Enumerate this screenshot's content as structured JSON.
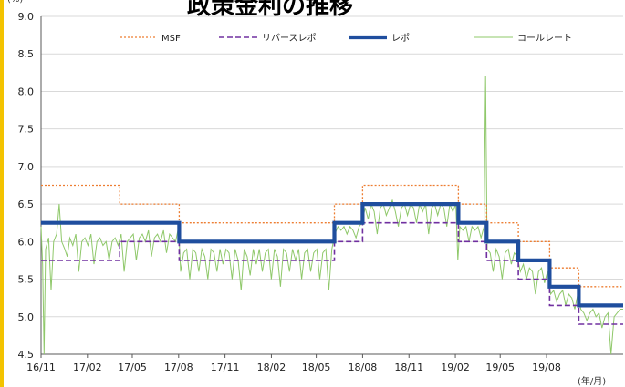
{
  "page": {
    "title": "政策金利の推移",
    "y_unit": "(%)",
    "x_unit": "(年/月)"
  },
  "chart_data": {
    "type": "line",
    "title": "政策金利の推移",
    "xlabel": "(年/月)",
    "ylabel": "(%)",
    "xlim": [
      "2016-11-01",
      "2019-12-31"
    ],
    "ylim": [
      4.5,
      9.0
    ],
    "yticks": [
      "4.5",
      "5.0",
      "5.5",
      "6.0",
      "6.5",
      "7.0",
      "7.5",
      "8.0",
      "8.5",
      "9.0"
    ],
    "xticks": [
      {
        "label": "16/11",
        "date": "2016-11-01"
      },
      {
        "label": "17/02",
        "date": "2017-02-01"
      },
      {
        "label": "17/05",
        "date": "2017-05-01"
      },
      {
        "label": "17/08",
        "date": "2017-08-01"
      },
      {
        "label": "17/11",
        "date": "2017-11-01"
      },
      {
        "label": "18/02",
        "date": "2018-02-01"
      },
      {
        "label": "18/05",
        "date": "2018-05-01"
      },
      {
        "label": "18/08",
        "date": "2018-08-01"
      },
      {
        "label": "18/11",
        "date": "2018-11-01"
      },
      {
        "label": "19/02",
        "date": "2019-02-01"
      },
      {
        "label": "19/05",
        "date": "2019-05-01"
      },
      {
        "label": "19/08",
        "date": "2019-08-01"
      }
    ],
    "grid": "horizontal",
    "legend_position": "top",
    "series": [
      {
        "name": "MSF",
        "style": "dotted",
        "color": "#ed7d31",
        "points": [
          [
            "2016-11-01",
            6.75
          ],
          [
            "2017-04-06",
            6.75
          ],
          [
            "2017-04-06",
            6.5
          ],
          [
            "2017-08-02",
            6.5
          ],
          [
            "2017-08-02",
            6.25
          ],
          [
            "2018-06-06",
            6.25
          ],
          [
            "2018-06-06",
            6.5
          ],
          [
            "2018-08-01",
            6.5
          ],
          [
            "2018-08-01",
            6.75
          ],
          [
            "2019-02-07",
            6.75
          ],
          [
            "2019-02-07",
            6.5
          ],
          [
            "2019-04-04",
            6.5
          ],
          [
            "2019-04-04",
            6.25
          ],
          [
            "2019-06-06",
            6.25
          ],
          [
            "2019-06-06",
            6.0
          ],
          [
            "2019-08-07",
            6.0
          ],
          [
            "2019-08-07",
            5.65
          ],
          [
            "2019-10-04",
            5.65
          ],
          [
            "2019-10-04",
            5.4
          ],
          [
            "2019-12-31",
            5.4
          ]
        ]
      },
      {
        "name": "リバースレポ",
        "style": "dashed",
        "color": "#7030a0",
        "points": [
          [
            "2016-11-01",
            5.75
          ],
          [
            "2017-04-06",
            5.75
          ],
          [
            "2017-04-06",
            6.0
          ],
          [
            "2017-08-02",
            6.0
          ],
          [
            "2017-08-02",
            5.75
          ],
          [
            "2018-06-06",
            5.75
          ],
          [
            "2018-06-06",
            6.0
          ],
          [
            "2018-08-01",
            6.0
          ],
          [
            "2018-08-01",
            6.25
          ],
          [
            "2019-02-07",
            6.25
          ],
          [
            "2019-02-07",
            6.0
          ],
          [
            "2019-04-04",
            6.0
          ],
          [
            "2019-04-04",
            5.75
          ],
          [
            "2019-06-06",
            5.75
          ],
          [
            "2019-06-06",
            5.5
          ],
          [
            "2019-08-07",
            5.5
          ],
          [
            "2019-08-07",
            5.15
          ],
          [
            "2019-10-04",
            5.15
          ],
          [
            "2019-10-04",
            4.9
          ],
          [
            "2019-12-31",
            4.9
          ]
        ]
      },
      {
        "name": "レポ",
        "style": "solid-thick",
        "color": "#1f4e9e",
        "points": [
          [
            "2016-11-01",
            6.25
          ],
          [
            "2017-08-02",
            6.25
          ],
          [
            "2017-08-02",
            6.0
          ],
          [
            "2018-06-06",
            6.0
          ],
          [
            "2018-06-06",
            6.25
          ],
          [
            "2018-08-01",
            6.25
          ],
          [
            "2018-08-01",
            6.5
          ],
          [
            "2019-02-07",
            6.5
          ],
          [
            "2019-02-07",
            6.25
          ],
          [
            "2019-04-04",
            6.25
          ],
          [
            "2019-04-04",
            6.0
          ],
          [
            "2019-06-06",
            6.0
          ],
          [
            "2019-06-06",
            5.75
          ],
          [
            "2019-08-07",
            5.75
          ],
          [
            "2019-08-07",
            5.4
          ],
          [
            "2019-10-04",
            5.4
          ],
          [
            "2019-10-04",
            5.15
          ],
          [
            "2019-12-31",
            5.15
          ]
        ]
      },
      {
        "name": "コールレート",
        "style": "solid-thin",
        "color": "#8fc86a",
        "points": [
          [
            "2016-11-01",
            6.2
          ],
          [
            "2016-11-04",
            5.7
          ],
          [
            "2016-11-07",
            4.5
          ],
          [
            "2016-11-10",
            5.9
          ],
          [
            "2016-11-16",
            6.05
          ],
          [
            "2016-11-21",
            5.35
          ],
          [
            "2016-11-26",
            6.0
          ],
          [
            "2016-12-02",
            6.1
          ],
          [
            "2016-12-07",
            6.5
          ],
          [
            "2016-12-12",
            6.0
          ],
          [
            "2016-12-18",
            5.9
          ],
          [
            "2016-12-23",
            5.8
          ],
          [
            "2016-12-28",
            6.05
          ],
          [
            "2017-01-03",
            5.95
          ],
          [
            "2017-01-09",
            6.1
          ],
          [
            "2017-01-15",
            5.6
          ],
          [
            "2017-01-21",
            6.0
          ],
          [
            "2017-01-27",
            6.05
          ],
          [
            "2017-02-02",
            5.95
          ],
          [
            "2017-02-08",
            6.1
          ],
          [
            "2017-02-14",
            5.7
          ],
          [
            "2017-02-20",
            6.0
          ],
          [
            "2017-02-26",
            6.05
          ],
          [
            "2017-03-04",
            5.95
          ],
          [
            "2017-03-10",
            6.0
          ],
          [
            "2017-03-16",
            5.75
          ],
          [
            "2017-03-22",
            6.0
          ],
          [
            "2017-03-28",
            6.05
          ],
          [
            "2017-04-03",
            5.95
          ],
          [
            "2017-04-09",
            6.1
          ],
          [
            "2017-04-15",
            5.6
          ],
          [
            "2017-04-21",
            6.0
          ],
          [
            "2017-04-27",
            6.05
          ],
          [
            "2017-05-03",
            6.1
          ],
          [
            "2017-05-09",
            5.75
          ],
          [
            "2017-05-15",
            6.05
          ],
          [
            "2017-05-21",
            6.1
          ],
          [
            "2017-05-27",
            6.0
          ],
          [
            "2017-06-02",
            6.15
          ],
          [
            "2017-06-08",
            5.8
          ],
          [
            "2017-06-14",
            6.05
          ],
          [
            "2017-06-20",
            6.1
          ],
          [
            "2017-06-26",
            6.0
          ],
          [
            "2017-07-02",
            6.15
          ],
          [
            "2017-07-08",
            5.85
          ],
          [
            "2017-07-14",
            6.1
          ],
          [
            "2017-07-20",
            6.05
          ],
          [
            "2017-07-26",
            6.0
          ],
          [
            "2017-08-01",
            6.2
          ],
          [
            "2017-08-05",
            5.6
          ],
          [
            "2017-08-11",
            5.85
          ],
          [
            "2017-08-17",
            5.9
          ],
          [
            "2017-08-23",
            5.5
          ],
          [
            "2017-08-29",
            5.9
          ],
          [
            "2017-09-04",
            5.85
          ],
          [
            "2017-09-10",
            5.6
          ],
          [
            "2017-09-16",
            5.9
          ],
          [
            "2017-09-22",
            5.8
          ],
          [
            "2017-09-28",
            5.5
          ],
          [
            "2017-10-04",
            5.9
          ],
          [
            "2017-10-10",
            5.85
          ],
          [
            "2017-10-16",
            5.6
          ],
          [
            "2017-10-22",
            5.9
          ],
          [
            "2017-10-28",
            5.7
          ],
          [
            "2017-11-03",
            5.9
          ],
          [
            "2017-11-09",
            5.85
          ],
          [
            "2017-11-15",
            5.5
          ],
          [
            "2017-11-21",
            5.9
          ],
          [
            "2017-11-27",
            5.75
          ],
          [
            "2017-12-03",
            5.35
          ],
          [
            "2017-12-09",
            5.9
          ],
          [
            "2017-12-15",
            5.8
          ],
          [
            "2017-12-21",
            5.55
          ],
          [
            "2017-12-27",
            5.9
          ],
          [
            "2018-01-02",
            5.7
          ],
          [
            "2018-01-08",
            5.9
          ],
          [
            "2018-01-14",
            5.6
          ],
          [
            "2018-01-20",
            5.85
          ],
          [
            "2018-01-26",
            5.9
          ],
          [
            "2018-02-01",
            5.5
          ],
          [
            "2018-02-07",
            5.9
          ],
          [
            "2018-02-13",
            5.8
          ],
          [
            "2018-02-19",
            5.4
          ],
          [
            "2018-02-25",
            5.9
          ],
          [
            "2018-03-03",
            5.85
          ],
          [
            "2018-03-09",
            5.6
          ],
          [
            "2018-03-15",
            5.9
          ],
          [
            "2018-03-21",
            5.75
          ],
          [
            "2018-03-27",
            5.9
          ],
          [
            "2018-04-02",
            5.5
          ],
          [
            "2018-04-08",
            5.85
          ],
          [
            "2018-04-14",
            5.9
          ],
          [
            "2018-04-20",
            5.6
          ],
          [
            "2018-04-26",
            5.85
          ],
          [
            "2018-05-02",
            5.9
          ],
          [
            "2018-05-08",
            5.5
          ],
          [
            "2018-05-14",
            5.85
          ],
          [
            "2018-05-20",
            5.9
          ],
          [
            "2018-05-26",
            5.35
          ],
          [
            "2018-06-01",
            5.9
          ],
          [
            "2018-06-07",
            6.1
          ],
          [
            "2018-06-13",
            6.2
          ],
          [
            "2018-06-19",
            6.15
          ],
          [
            "2018-06-25",
            6.2
          ],
          [
            "2018-07-01",
            6.1
          ],
          [
            "2018-07-07",
            6.2
          ],
          [
            "2018-07-13",
            6.15
          ],
          [
            "2018-07-19",
            6.05
          ],
          [
            "2018-07-25",
            6.2
          ],
          [
            "2018-07-31",
            6.25
          ],
          [
            "2018-08-06",
            6.45
          ],
          [
            "2018-08-12",
            6.3
          ],
          [
            "2018-08-18",
            6.5
          ],
          [
            "2018-08-24",
            6.4
          ],
          [
            "2018-08-30",
            6.1
          ],
          [
            "2018-09-05",
            6.45
          ],
          [
            "2018-09-11",
            6.5
          ],
          [
            "2018-09-17",
            6.35
          ],
          [
            "2018-09-23",
            6.45
          ],
          [
            "2018-09-29",
            6.55
          ],
          [
            "2018-10-05",
            6.4
          ],
          [
            "2018-10-11",
            6.2
          ],
          [
            "2018-10-17",
            6.45
          ],
          [
            "2018-10-23",
            6.5
          ],
          [
            "2018-10-29",
            6.35
          ],
          [
            "2018-11-04",
            6.5
          ],
          [
            "2018-11-10",
            6.45
          ],
          [
            "2018-11-16",
            6.25
          ],
          [
            "2018-11-22",
            6.5
          ],
          [
            "2018-11-28",
            6.4
          ],
          [
            "2018-12-04",
            6.5
          ],
          [
            "2018-12-10",
            6.1
          ],
          [
            "2018-12-16",
            6.45
          ],
          [
            "2018-12-22",
            6.5
          ],
          [
            "2018-12-28",
            6.35
          ],
          [
            "2019-01-03",
            6.5
          ],
          [
            "2019-01-09",
            6.45
          ],
          [
            "2019-01-15",
            6.2
          ],
          [
            "2019-01-21",
            6.5
          ],
          [
            "2019-01-27",
            6.4
          ],
          [
            "2019-02-02",
            6.5
          ],
          [
            "2019-02-06",
            5.75
          ],
          [
            "2019-02-10",
            6.2
          ],
          [
            "2019-02-16",
            6.15
          ],
          [
            "2019-02-22",
            6.2
          ],
          [
            "2019-02-28",
            6.0
          ],
          [
            "2019-03-06",
            6.2
          ],
          [
            "2019-03-12",
            6.15
          ],
          [
            "2019-03-18",
            6.2
          ],
          [
            "2019-03-24",
            6.05
          ],
          [
            "2019-03-30",
            6.2
          ],
          [
            "2019-04-02",
            8.2
          ],
          [
            "2019-04-05",
            5.9
          ],
          [
            "2019-04-11",
            5.85
          ],
          [
            "2019-04-17",
            5.6
          ],
          [
            "2019-04-23",
            5.9
          ],
          [
            "2019-04-29",
            5.8
          ],
          [
            "2019-05-05",
            5.5
          ],
          [
            "2019-05-11",
            5.85
          ],
          [
            "2019-05-17",
            5.9
          ],
          [
            "2019-05-23",
            5.7
          ],
          [
            "2019-05-29",
            5.85
          ],
          [
            "2019-06-04",
            5.8
          ],
          [
            "2019-06-10",
            5.6
          ],
          [
            "2019-06-16",
            5.7
          ],
          [
            "2019-06-22",
            5.5
          ],
          [
            "2019-06-28",
            5.65
          ],
          [
            "2019-07-04",
            5.6
          ],
          [
            "2019-07-10",
            5.3
          ],
          [
            "2019-07-16",
            5.6
          ],
          [
            "2019-07-22",
            5.65
          ],
          [
            "2019-07-28",
            5.45
          ],
          [
            "2019-08-03",
            5.6
          ],
          [
            "2019-08-09",
            5.3
          ],
          [
            "2019-08-15",
            5.35
          ],
          [
            "2019-08-21",
            5.2
          ],
          [
            "2019-08-27",
            5.3
          ],
          [
            "2019-09-02",
            5.35
          ],
          [
            "2019-09-08",
            5.15
          ],
          [
            "2019-09-14",
            5.3
          ],
          [
            "2019-09-20",
            5.25
          ],
          [
            "2019-09-26",
            5.1
          ],
          [
            "2019-10-02",
            5.3
          ],
          [
            "2019-10-08",
            5.1
          ],
          [
            "2019-10-14",
            5.05
          ],
          [
            "2019-10-20",
            4.95
          ],
          [
            "2019-10-26",
            5.05
          ],
          [
            "2019-11-01",
            5.1
          ],
          [
            "2019-11-07",
            5.0
          ],
          [
            "2019-11-13",
            5.05
          ],
          [
            "2019-11-19",
            4.85
          ],
          [
            "2019-11-25",
            5.0
          ],
          [
            "2019-12-01",
            5.05
          ],
          [
            "2019-12-07",
            4.5
          ],
          [
            "2019-12-13",
            5.0
          ],
          [
            "2019-12-19",
            5.05
          ],
          [
            "2019-12-25",
            5.1
          ],
          [
            "2019-12-31",
            5.1
          ]
        ]
      }
    ]
  }
}
